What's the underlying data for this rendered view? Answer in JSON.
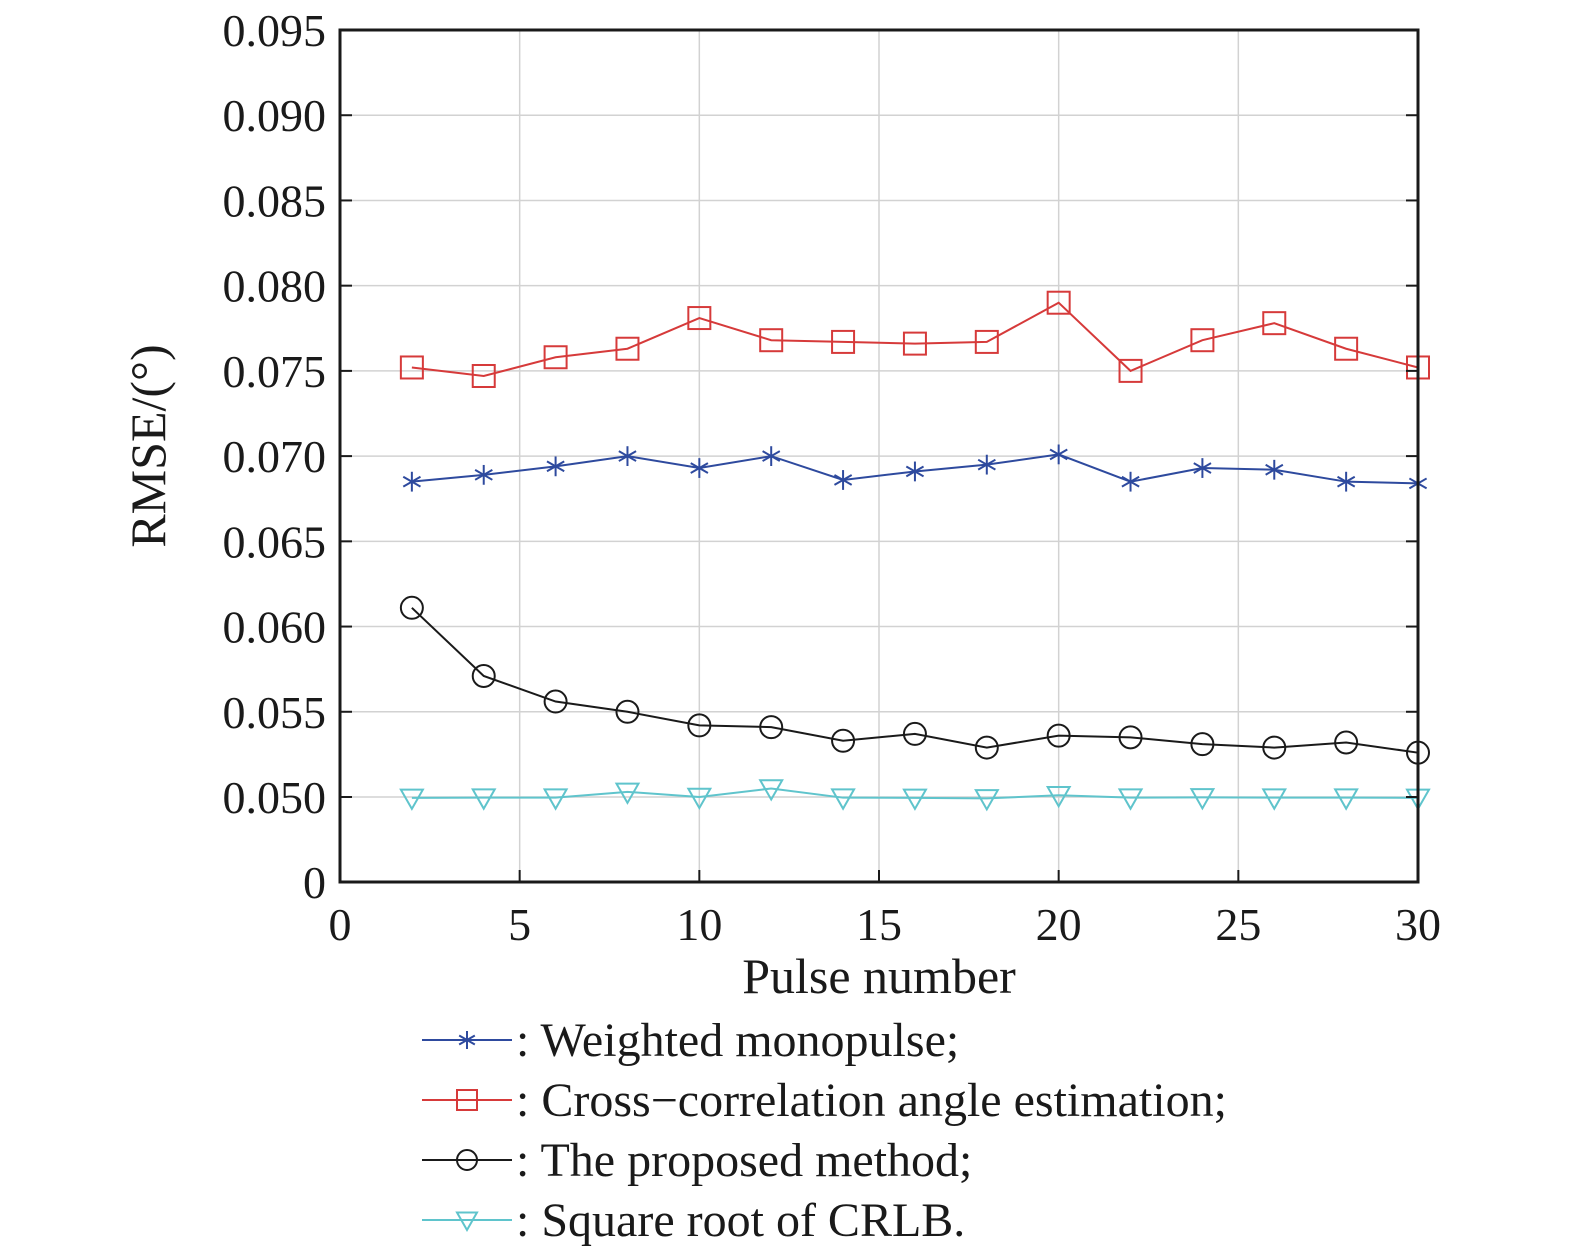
{
  "chart_data": {
    "type": "line",
    "xlabel": "Pulse number",
    "ylabel": "RMSE/(°)",
    "xlim": [
      0,
      30
    ],
    "ylim": [
      0,
      0.095
    ],
    "y_axis_break": "axis jumps from 0 to 0.050",
    "xticks": [
      "0",
      "5",
      "10",
      "15",
      "20",
      "25",
      "30"
    ],
    "yticks": [
      "0",
      "0.050",
      "0.055",
      "0.060",
      "0.065",
      "0.070",
      "0.075",
      "0.080",
      "0.085",
      "0.090",
      "0.095"
    ],
    "grid": true,
    "legend_position": "below the plot",
    "x": [
      2,
      4,
      6,
      8,
      10,
      12,
      14,
      16,
      18,
      20,
      22,
      24,
      26,
      28,
      30
    ],
    "series": [
      {
        "name": ": Weighted monopulse;",
        "color": "#2e4a9e",
        "marker": "asterisk",
        "values": [
          0.0685,
          0.0689,
          0.0694,
          0.07,
          0.0693,
          0.07,
          0.0686,
          0.0691,
          0.0695,
          0.0701,
          0.0685,
          0.0693,
          0.0692,
          0.0685,
          0.0684
        ]
      },
      {
        "name": ": Cross−correlation angle estimation;",
        "color": "#d63a3a",
        "marker": "square",
        "values": [
          0.0752,
          0.0747,
          0.0758,
          0.0763,
          0.0781,
          0.0768,
          0.0767,
          0.0766,
          0.0767,
          0.079,
          0.075,
          0.0768,
          0.0778,
          0.0763,
          0.0752
        ]
      },
      {
        "name": ": The proposed method;",
        "color": "#1a1a1a",
        "marker": "circle",
        "values": [
          0.0611,
          0.0571,
          0.0556,
          0.055,
          0.0542,
          0.0541,
          0.0533,
          0.0537,
          0.0529,
          0.0536,
          0.0535,
          0.0531,
          0.0529,
          0.0532,
          0.0526
        ]
      },
      {
        "name": ": Square root of CRLB.",
        "color": "#5fc4cc",
        "marker": "triangle-down",
        "values": [
          0.0495,
          0.0496,
          0.0496,
          0.0503,
          0.05,
          0.0505,
          0.0496,
          0.0495,
          0.0492,
          0.0501,
          0.0496,
          0.0498,
          0.0496,
          0.0496,
          0.0495
        ]
      }
    ]
  }
}
